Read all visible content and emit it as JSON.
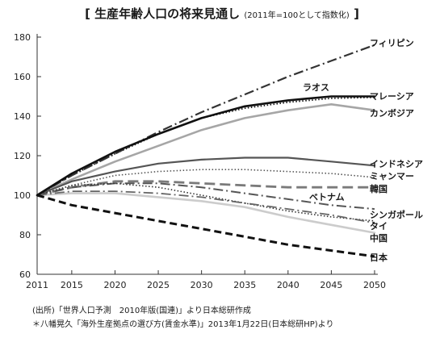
{
  "title": {
    "bracket_open": "[",
    "main": "生産年齢人口の将来見通し",
    "sub": "(2011年=100として指数化)",
    "bracket_close": "]"
  },
  "source": {
    "line1": "(出所)「世界人口予測　2010年版(国連)」より日本総研作成",
    "line2": "＊八幡晃久「海外生産拠点の選び方(賃金水準)」2013年1月22日(日本総研HP)より"
  },
  "chart_data": {
    "type": "line",
    "title": "生産年齢人口の将来見通し",
    "xlabel": "",
    "ylabel": "",
    "x": [
      2011,
      2015,
      2020,
      2025,
      2030,
      2035,
      2040,
      2045,
      2050
    ],
    "x_tick_labels": [
      "2011",
      "2015",
      "2020",
      "2025",
      "2030",
      "2035",
      "2040",
      "2045",
      "2050"
    ],
    "xlim": [
      2011,
      2050
    ],
    "ylim": [
      60,
      180
    ],
    "y_ticks": [
      60,
      80,
      100,
      120,
      140,
      160,
      180
    ],
    "y_tick_labels": [
      "60",
      "80",
      "100",
      "120",
      "140",
      "160",
      "180"
    ],
    "grid": false,
    "legend": "direct labels at right end of lines",
    "series": [
      {
        "name": "フィリピン",
        "values": [
          100,
          110,
          121,
          132,
          142,
          151,
          160,
          168,
          176
        ],
        "color": "#333333",
        "style": "dashdot",
        "width": 2.2
      },
      {
        "name": "ラオス",
        "values": [
          100,
          110,
          121,
          131,
          139,
          144,
          147,
          149,
          149.5
        ],
        "color": "#111111",
        "style": "dotted",
        "width": 1.8
      },
      {
        "name": "マレーシア",
        "values": [
          100,
          111,
          122,
          131,
          139,
          145,
          148,
          150,
          150
        ],
        "color": "#111111",
        "style": "solid",
        "width": 2.6
      },
      {
        "name": "カンボジア",
        "values": [
          100,
          108,
          117,
          125,
          133,
          139,
          143,
          146,
          143
        ],
        "color": "#a6a6a6",
        "style": "solid",
        "width": 2.6
      },
      {
        "name": "インドネシア",
        "values": [
          100,
          107,
          112,
          116,
          118,
          119,
          119,
          117,
          115
        ],
        "color": "#555555",
        "style": "solid",
        "width": 2.2
      },
      {
        "name": "ミャンマー",
        "values": [
          100,
          105,
          110,
          112,
          113,
          113,
          112,
          111,
          109
        ],
        "color": "#555555",
        "style": "dotted",
        "width": 1.6
      },
      {
        "name": "韓国",
        "values": [
          100,
          104,
          107,
          107,
          106,
          105,
          104,
          104,
          104
        ],
        "color": "#7a7a7a",
        "style": "longdash",
        "width": 2.8
      },
      {
        "name": "ベトナム",
        "values": [
          100,
          104,
          106,
          106,
          104,
          101,
          98,
          95,
          93
        ],
        "color": "#555555",
        "style": "dashdot",
        "width": 2
      },
      {
        "name": "シンガポール",
        "values": [
          100,
          105,
          106,
          104,
          100,
          96,
          92,
          89,
          87
        ],
        "color": "#333333",
        "style": "dotted",
        "width": 1.6
      },
      {
        "name": "タイ",
        "values": [
          100,
          102,
          102,
          101,
          99,
          96,
          93,
          90,
          86
        ],
        "color": "#666666",
        "style": "dashdot",
        "width": 1.8
      },
      {
        "name": "中国",
        "values": [
          100,
          101,
          101,
          99,
          97,
          94,
          89,
          85,
          81
        ],
        "color": "#cccccc",
        "style": "solid",
        "width": 2.6
      },
      {
        "name": "日本",
        "values": [
          100,
          95,
          91,
          87,
          83,
          79,
          75,
          72,
          69
        ],
        "color": "#111111",
        "style": "dashed",
        "width": 3
      }
    ]
  }
}
